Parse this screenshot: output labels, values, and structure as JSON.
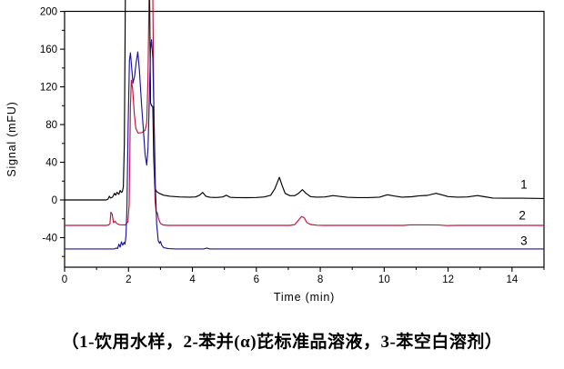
{
  "caption": "（1-饮用水样，2-苯并(α)芘标准品溶液，3-苯空白溶剂）",
  "chart": {
    "y_title": "Signal (mFU)",
    "x_title": "Time (min)",
    "y_major_ticks": [
      200,
      160,
      120,
      80,
      40,
      0,
      -40
    ],
    "y_minor_ticks": [
      180,
      140,
      100,
      60,
      20,
      -20,
      -60
    ],
    "x_major_ticks": [
      0,
      2,
      4,
      6,
      8,
      10,
      12,
      14
    ],
    "x_minor_ticks": [
      1,
      3,
      5,
      7,
      9,
      11,
      13,
      15
    ],
    "frame_color": "#000000",
    "trace_labels": [
      {
        "text": "1",
        "t": 14.37,
        "v": 16.5
      },
      {
        "text": "2",
        "t": 14.32,
        "v": -16.5
      },
      {
        "text": "3",
        "t": 14.37,
        "v": -43.5
      }
    ]
  },
  "chart_data": {
    "type": "line",
    "title": "",
    "xlabel": "Time (min)",
    "ylabel": "Signal (mFU)",
    "xlim": [
      0,
      15
    ],
    "ylim": [
      -70,
      200
    ],
    "grid": false,
    "legend_position": "none",
    "note": "HPLC chromatogram; large solvent-front peaks near 2-2.8 min are clipped above the 200 mFU axis top; traces 2 and 3 are vertically offset to baselines of about -27 and -52 mFU",
    "series": [
      {
        "name": "1-饮用水样",
        "label": "1",
        "color": "#000000",
        "baseline": 0,
        "points": [
          [
            0,
            0
          ],
          [
            1.3,
            0
          ],
          [
            1.36,
            1
          ],
          [
            1.4,
            4
          ],
          [
            1.44,
            2
          ],
          [
            1.5,
            3
          ],
          [
            1.56,
            7
          ],
          [
            1.6,
            5
          ],
          [
            1.64,
            8
          ],
          [
            1.7,
            6
          ],
          [
            1.74,
            10
          ],
          [
            1.78,
            8
          ],
          [
            1.81,
            9
          ],
          [
            1.84,
            14
          ],
          [
            1.87,
            60
          ],
          [
            1.9,
            215
          ],
          [
            2.66,
            215
          ],
          [
            2.69,
            103
          ],
          [
            2.72,
            100
          ],
          [
            2.76,
            99
          ],
          [
            2.79,
            45
          ],
          [
            2.82,
            13
          ],
          [
            2.88,
            9
          ],
          [
            2.96,
            7
          ],
          [
            3.1,
            5
          ],
          [
            3.3,
            4
          ],
          [
            3.6,
            3.2
          ],
          [
            3.9,
            3
          ],
          [
            4.1,
            3.2
          ],
          [
            4.22,
            5
          ],
          [
            4.32,
            8
          ],
          [
            4.42,
            4
          ],
          [
            4.55,
            2.8
          ],
          [
            4.75,
            2.6
          ],
          [
            4.95,
            3.2
          ],
          [
            5.06,
            5
          ],
          [
            5.18,
            2.8
          ],
          [
            5.4,
            2.5
          ],
          [
            5.7,
            2.4
          ],
          [
            6.0,
            2.6
          ],
          [
            6.25,
            3.2
          ],
          [
            6.45,
            5
          ],
          [
            6.58,
            12
          ],
          [
            6.72,
            24
          ],
          [
            6.8,
            16
          ],
          [
            6.9,
            7
          ],
          [
            7.05,
            4.5
          ],
          [
            7.2,
            4.5
          ],
          [
            7.32,
            7
          ],
          [
            7.44,
            11
          ],
          [
            7.55,
            7
          ],
          [
            7.7,
            3.5
          ],
          [
            7.9,
            3
          ],
          [
            8.15,
            3.2
          ],
          [
            8.4,
            4.6
          ],
          [
            8.6,
            3.8
          ],
          [
            8.85,
            2.8
          ],
          [
            9.15,
            2.5
          ],
          [
            9.5,
            2.5
          ],
          [
            9.85,
            3
          ],
          [
            10.1,
            5.5
          ],
          [
            10.3,
            4.2
          ],
          [
            10.55,
            3
          ],
          [
            10.85,
            3.4
          ],
          [
            11.1,
            4.4
          ],
          [
            11.35,
            4.8
          ],
          [
            11.62,
            7
          ],
          [
            11.8,
            5.5
          ],
          [
            12.0,
            3.6
          ],
          [
            12.3,
            3
          ],
          [
            12.6,
            3.2
          ],
          [
            12.92,
            4.6
          ],
          [
            13.15,
            3.4
          ],
          [
            13.4,
            2
          ],
          [
            13.8,
            1.8
          ],
          [
            14.3,
            1.8
          ],
          [
            14.8,
            1.6
          ],
          [
            15,
            1.5
          ]
        ]
      },
      {
        "name": "2-苯并(α)芘标准品溶液",
        "label": "2",
        "color": "#c41237",
        "baseline": -27,
        "points": [
          [
            0,
            -27
          ],
          [
            1.3,
            -27
          ],
          [
            1.38,
            -26.5
          ],
          [
            1.42,
            -25
          ],
          [
            1.45,
            -13
          ],
          [
            1.49,
            -15
          ],
          [
            1.53,
            -24
          ],
          [
            1.58,
            -22.5
          ],
          [
            1.63,
            -25
          ],
          [
            1.72,
            -26.3
          ],
          [
            1.9,
            -26.5
          ],
          [
            1.98,
            -23
          ],
          [
            2.02,
            -5
          ],
          [
            2.06,
            100
          ],
          [
            2.09,
            127
          ],
          [
            2.13,
            118
          ],
          [
            2.18,
            92
          ],
          [
            2.23,
            76
          ],
          [
            2.3,
            71
          ],
          [
            2.42,
            71.5
          ],
          [
            2.52,
            74
          ],
          [
            2.57,
            82
          ],
          [
            2.61,
            130
          ],
          [
            2.64,
            215
          ],
          [
            2.76,
            215
          ],
          [
            2.8,
            70
          ],
          [
            2.83,
            0
          ],
          [
            2.86,
            -12
          ],
          [
            2.9,
            -13.5
          ],
          [
            2.94,
            -20
          ],
          [
            3.0,
            -25
          ],
          [
            3.08,
            -26.5
          ],
          [
            3.25,
            -27
          ],
          [
            7.05,
            -27
          ],
          [
            7.2,
            -26.2
          ],
          [
            7.33,
            -21
          ],
          [
            7.42,
            -17.5
          ],
          [
            7.5,
            -19
          ],
          [
            7.58,
            -24
          ],
          [
            7.7,
            -26
          ],
          [
            7.9,
            -26.8
          ],
          [
            8.1,
            -27
          ],
          [
            10.6,
            -27
          ],
          [
            10.8,
            -26.4
          ],
          [
            11.3,
            -26.4
          ],
          [
            11.7,
            -26.6
          ],
          [
            11.95,
            -27.2
          ],
          [
            12.3,
            -27
          ],
          [
            15,
            -27
          ]
        ]
      },
      {
        "name": "3-苯空白溶剂",
        "label": "3",
        "color": "#1c1499",
        "baseline": -52,
        "points": [
          [
            0,
            -52
          ],
          [
            1.55,
            -52
          ],
          [
            1.62,
            -51
          ],
          [
            1.66,
            -51.5
          ],
          [
            1.7,
            -47
          ],
          [
            1.74,
            -50
          ],
          [
            1.78,
            -44.5
          ],
          [
            1.82,
            -48
          ],
          [
            1.86,
            -45
          ],
          [
            1.89,
            -47
          ],
          [
            1.92,
            -38
          ],
          [
            1.95,
            -10
          ],
          [
            1.99,
            80
          ],
          [
            2.03,
            148
          ],
          [
            2.06,
            156
          ],
          [
            2.1,
            140
          ],
          [
            2.14,
            124
          ],
          [
            2.19,
            131
          ],
          [
            2.24,
            146
          ],
          [
            2.29,
            157
          ],
          [
            2.34,
            138
          ],
          [
            2.41,
            100
          ],
          [
            2.47,
            72
          ],
          [
            2.52,
            48
          ],
          [
            2.57,
            37
          ],
          [
            2.61,
            55
          ],
          [
            2.65,
            105
          ],
          [
            2.69,
            160
          ],
          [
            2.72,
            170
          ],
          [
            2.76,
            150
          ],
          [
            2.8,
            85
          ],
          [
            2.84,
            15
          ],
          [
            2.88,
            -25
          ],
          [
            2.93,
            -43
          ],
          [
            2.97,
            -46
          ],
          [
            3.0,
            -44
          ],
          [
            3.04,
            -48
          ],
          [
            3.1,
            -50.5
          ],
          [
            3.25,
            -51.7
          ],
          [
            3.5,
            -52
          ],
          [
            4.35,
            -52
          ],
          [
            4.45,
            -51
          ],
          [
            4.55,
            -52
          ],
          [
            15,
            -52
          ]
        ]
      }
    ]
  }
}
